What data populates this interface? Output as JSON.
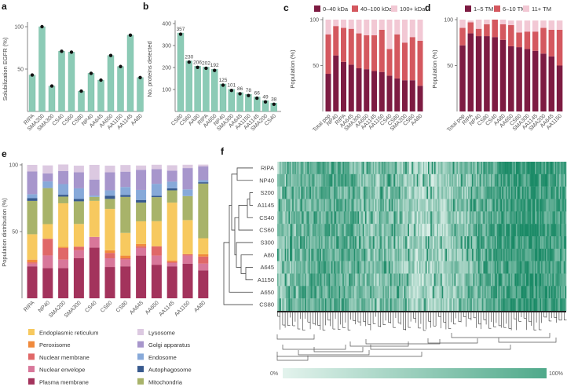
{
  "chart_data": [
    {
      "panel": "a",
      "type": "bar",
      "ylabel": "Solubilization EGFR (%)",
      "yticks": [
        "50",
        "100"
      ],
      "ylim": [
        0,
        100
      ],
      "categories": [
        "RIPA",
        "SMA200",
        "SMA300",
        "CS40",
        "CS60",
        "CS80",
        "NP40",
        "AA645",
        "AA650",
        "AA1150",
        "AA1145",
        "AA80"
      ],
      "values": [
        43,
        100,
        30,
        71,
        70,
        24,
        45,
        37,
        66,
        53,
        90,
        40
      ],
      "colors": {
        "bar": "#8ccbb6",
        "point": "#111111"
      }
    },
    {
      "panel": "b",
      "type": "bar",
      "ylabel": "No. proteins detected",
      "yticks": [
        "100",
        "200",
        "300",
        "400"
      ],
      "ylim": [
        0,
        400
      ],
      "categories": [
        "CS80",
        "CS60",
        "AA80",
        "RIPA",
        "AA650",
        "NP40",
        "SMA300",
        "AA645",
        "AA1150",
        "AA1145",
        "SMA200",
        "CS40"
      ],
      "values": [
        357,
        230,
        206,
        202,
        192,
        125,
        101,
        86,
        78,
        66,
        49,
        38
      ],
      "data_labels": [
        "357",
        "230",
        "206",
        "202",
        "192",
        "125",
        "101",
        "86",
        "78",
        "66",
        "49",
        "38"
      ],
      "colors": {
        "bar": "#8ccbb6",
        "point": "#111111"
      }
    },
    {
      "panel": "c",
      "type": "bar",
      "stacked": true,
      "ylabel": "Population (%)",
      "yticks": [
        "50",
        "100"
      ],
      "ylim": [
        0,
        100
      ],
      "legend_position": "top",
      "categories": [
        "Total pop",
        "NP40",
        "RIPA",
        "AA645",
        "SMA300",
        "AA650",
        "AA1145",
        "AA1150",
        "CS40",
        "CS80",
        "SMA200",
        "CS60",
        "AA80"
      ],
      "series": [
        {
          "name": "0–40 kDa",
          "color": "#7d1b42",
          "values": [
            41,
            61,
            54,
            51,
            47,
            46,
            44,
            43,
            39,
            36,
            34,
            34,
            28
          ]
        },
        {
          "name": "40–100 kDa",
          "color": "#d4585f",
          "values": [
            43,
            32,
            37,
            39,
            38,
            37,
            39,
            46,
            29,
            48,
            41,
            47,
            49
          ]
        },
        {
          "name": "100+ kDa",
          "color": "#f2c8d4",
          "values": [
            16,
            7,
            9,
            10,
            15,
            17,
            17,
            11,
            32,
            16,
            25,
            19,
            23
          ]
        }
      ]
    },
    {
      "panel": "d",
      "type": "bar",
      "stacked": true,
      "ylabel": "Population (%)",
      "yticks": [
        "50",
        "100"
      ],
      "ylim": [
        0,
        100
      ],
      "legend_position": "top",
      "categories": [
        "Total pop",
        "RIPA",
        "NP40",
        "CS80",
        "CS40",
        "AA80",
        "AA650",
        "CS60",
        "SMA300",
        "AA1145",
        "SMA200",
        "AA645",
        "AA1150"
      ],
      "series": [
        {
          "name": "1–5 TM",
          "color": "#7d1b42",
          "values": [
            72,
            85,
            82,
            82,
            81,
            78,
            71,
            70,
            68,
            66,
            63,
            60,
            50
          ]
        },
        {
          "name": "6–10 TM",
          "color": "#d4585f",
          "values": [
            19,
            12,
            8,
            13,
            19,
            17,
            23,
            16,
            19,
            21,
            28,
            29,
            39
          ]
        },
        {
          "name": "11+ TM",
          "color": "#f2c8d4",
          "values": [
            9,
            2,
            10,
            5,
            0,
            5,
            5,
            13,
            12,
            12,
            8,
            10,
            10
          ]
        }
      ]
    },
    {
      "panel": "e",
      "type": "bar",
      "stacked": true,
      "ylabel": "Population distribution (%)",
      "yticks": [
        "50",
        "100"
      ],
      "ylim": [
        0,
        100
      ],
      "legend_position": "bottom",
      "categories": [
        "RIPA",
        "NP40",
        "SMA200",
        "SMA300",
        "CS40",
        "CS60",
        "CS80",
        "AA645",
        "AA650",
        "AA1145",
        "AA1150",
        "AA80"
      ],
      "series": [
        {
          "name": "Plasma membrane",
          "color": "#a3335c",
          "values": [
            24,
            22.6,
            22.6,
            30,
            38,
            23.5,
            24,
            32,
            25,
            24,
            26,
            21
          ]
        },
        {
          "name": "Nuclear envelope",
          "color": "#d8779a",
          "values": [
            2,
            9.5,
            6.4,
            6,
            8,
            6.5,
            5,
            5.7,
            7,
            2.5,
            6,
            5
          ]
        },
        {
          "name": "Nuclear membrane",
          "color": "#e06868",
          "values": [
            1,
            12.5,
            8.7,
            2.7,
            0,
            4,
            1,
            1.3,
            7,
            0.8,
            1,
            5.3
          ]
        },
        {
          "name": "Peroxisome",
          "color": "#f08a3c",
          "values": [
            2,
            0,
            0.8,
            0,
            0,
            2,
            2,
            1.7,
            0,
            1,
            0,
            1.7
          ]
        },
        {
          "name": "Endoplasmic reticulum",
          "color": "#f7c95f",
          "values": [
            19,
            11,
            32.7,
            17,
            27,
            31,
            17,
            17,
            18.8,
            43.4,
            25.6,
            12
          ]
        },
        {
          "name": "Mitochondria",
          "color": "#a8b36a",
          "values": [
            25,
            27,
            5,
            17,
            3,
            7.5,
            27,
            14,
            18,
            9.2,
            18,
            41
          ]
        },
        {
          "name": "Autophagosome",
          "color": "#385a8e",
          "values": [
            2,
            0,
            1.4,
            1.7,
            0,
            2.4,
            1.4,
            2,
            1,
            1.5,
            0,
            1
          ]
        },
        {
          "name": "Endosome",
          "color": "#87a9d9",
          "values": [
            3,
            5,
            8,
            8,
            1,
            4,
            6,
            7.5,
            9,
            5,
            5,
            1.5
          ]
        },
        {
          "name": "Golgi apparatus",
          "color": "#a796cc",
          "values": [
            17,
            6,
            9.7,
            12,
            12,
            13.5,
            11.5,
            15,
            11,
            8.3,
            16,
            10.3
          ]
        },
        {
          "name": "Lysosome",
          "color": "#dcc9e1",
          "values": [
            5,
            6,
            5,
            5,
            11,
            5,
            5,
            3.3,
            3.3,
            4,
            2.5,
            1.4
          ]
        }
      ],
      "legend_order": [
        "Endoplasmic reticulum",
        "Peroxisome",
        "Nuclear membrane",
        "Nuclear envelope",
        "Plasma membrane",
        "Lysosome",
        "Golgi apparatus",
        "Endosome",
        "Autophagosome",
        "Mitochondria"
      ]
    },
    {
      "panel": "f",
      "type": "heatmap",
      "rows": [
        "RIPA",
        "NP40",
        "S200",
        "A1145",
        "CS40",
        "CS60",
        "S300",
        "A80",
        "A645",
        "A1150",
        "A650",
        "CS80"
      ],
      "colorbar": {
        "min_label": "0%",
        "max_label": "100%",
        "low_color": "#e3f3ed",
        "high_color": "#1a8a66"
      },
      "row_dendrogram": true,
      "column_dendrogram": true
    }
  ]
}
